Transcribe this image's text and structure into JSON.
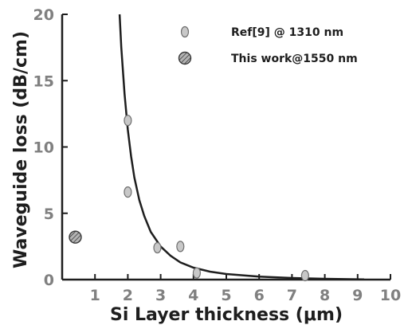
{
  "chart_data": {
    "type": "scatter",
    "xlabel": "Si Layer thickness (μm)",
    "ylabel": "Waveguide loss (dB/cm)",
    "xlim": [
      0,
      10
    ],
    "ylim": [
      0,
      20
    ],
    "x_ticks": [
      "1",
      "2",
      "3",
      "4",
      "5",
      "6",
      "7",
      "8",
      "9",
      "10"
    ],
    "y_ticks": [
      "0",
      "5",
      "10",
      "15",
      "20"
    ],
    "grid": false,
    "legend_position": "top-right",
    "series": [
      {
        "name": "Ref[9] @ 1310 nm",
        "marker": "grey-ellipse",
        "points": [
          {
            "x": 2.0,
            "y": 12.0
          },
          {
            "x": 2.0,
            "y": 6.6
          },
          {
            "x": 2.9,
            "y": 2.4
          },
          {
            "x": 3.6,
            "y": 2.5
          },
          {
            "x": 4.1,
            "y": 0.5
          },
          {
            "x": 7.4,
            "y": 0.3
          }
        ]
      },
      {
        "name": "This work@1550 nm",
        "marker": "hatched-circle",
        "points": [
          {
            "x": 0.4,
            "y": 3.2
          }
        ]
      }
    ],
    "fit_curve": {
      "type": "line",
      "x_start": 1.75,
      "x_end": 9.2,
      "samples": [
        [
          1.75,
          20.0
        ],
        [
          1.8,
          17.5
        ],
        [
          1.9,
          14.0
        ],
        [
          2.0,
          11.3
        ],
        [
          2.1,
          9.3
        ],
        [
          2.2,
          7.7
        ],
        [
          2.35,
          6.0
        ],
        [
          2.5,
          4.8
        ],
        [
          2.7,
          3.6
        ],
        [
          3.0,
          2.5
        ],
        [
          3.3,
          1.8
        ],
        [
          3.6,
          1.3
        ],
        [
          4.0,
          0.9
        ],
        [
          4.5,
          0.6
        ],
        [
          5.0,
          0.42
        ],
        [
          6.0,
          0.22
        ],
        [
          7.0,
          0.12
        ],
        [
          8.0,
          0.06
        ],
        [
          9.2,
          0.02
        ]
      ]
    },
    "colors": {
      "axis": "#1e1e1e",
      "tick_labels": "#808080",
      "ref_marker_fill": "#c8c8c8",
      "this_work_marker_fill": "#9a9a9a",
      "curve": "#1e1e1e"
    }
  }
}
